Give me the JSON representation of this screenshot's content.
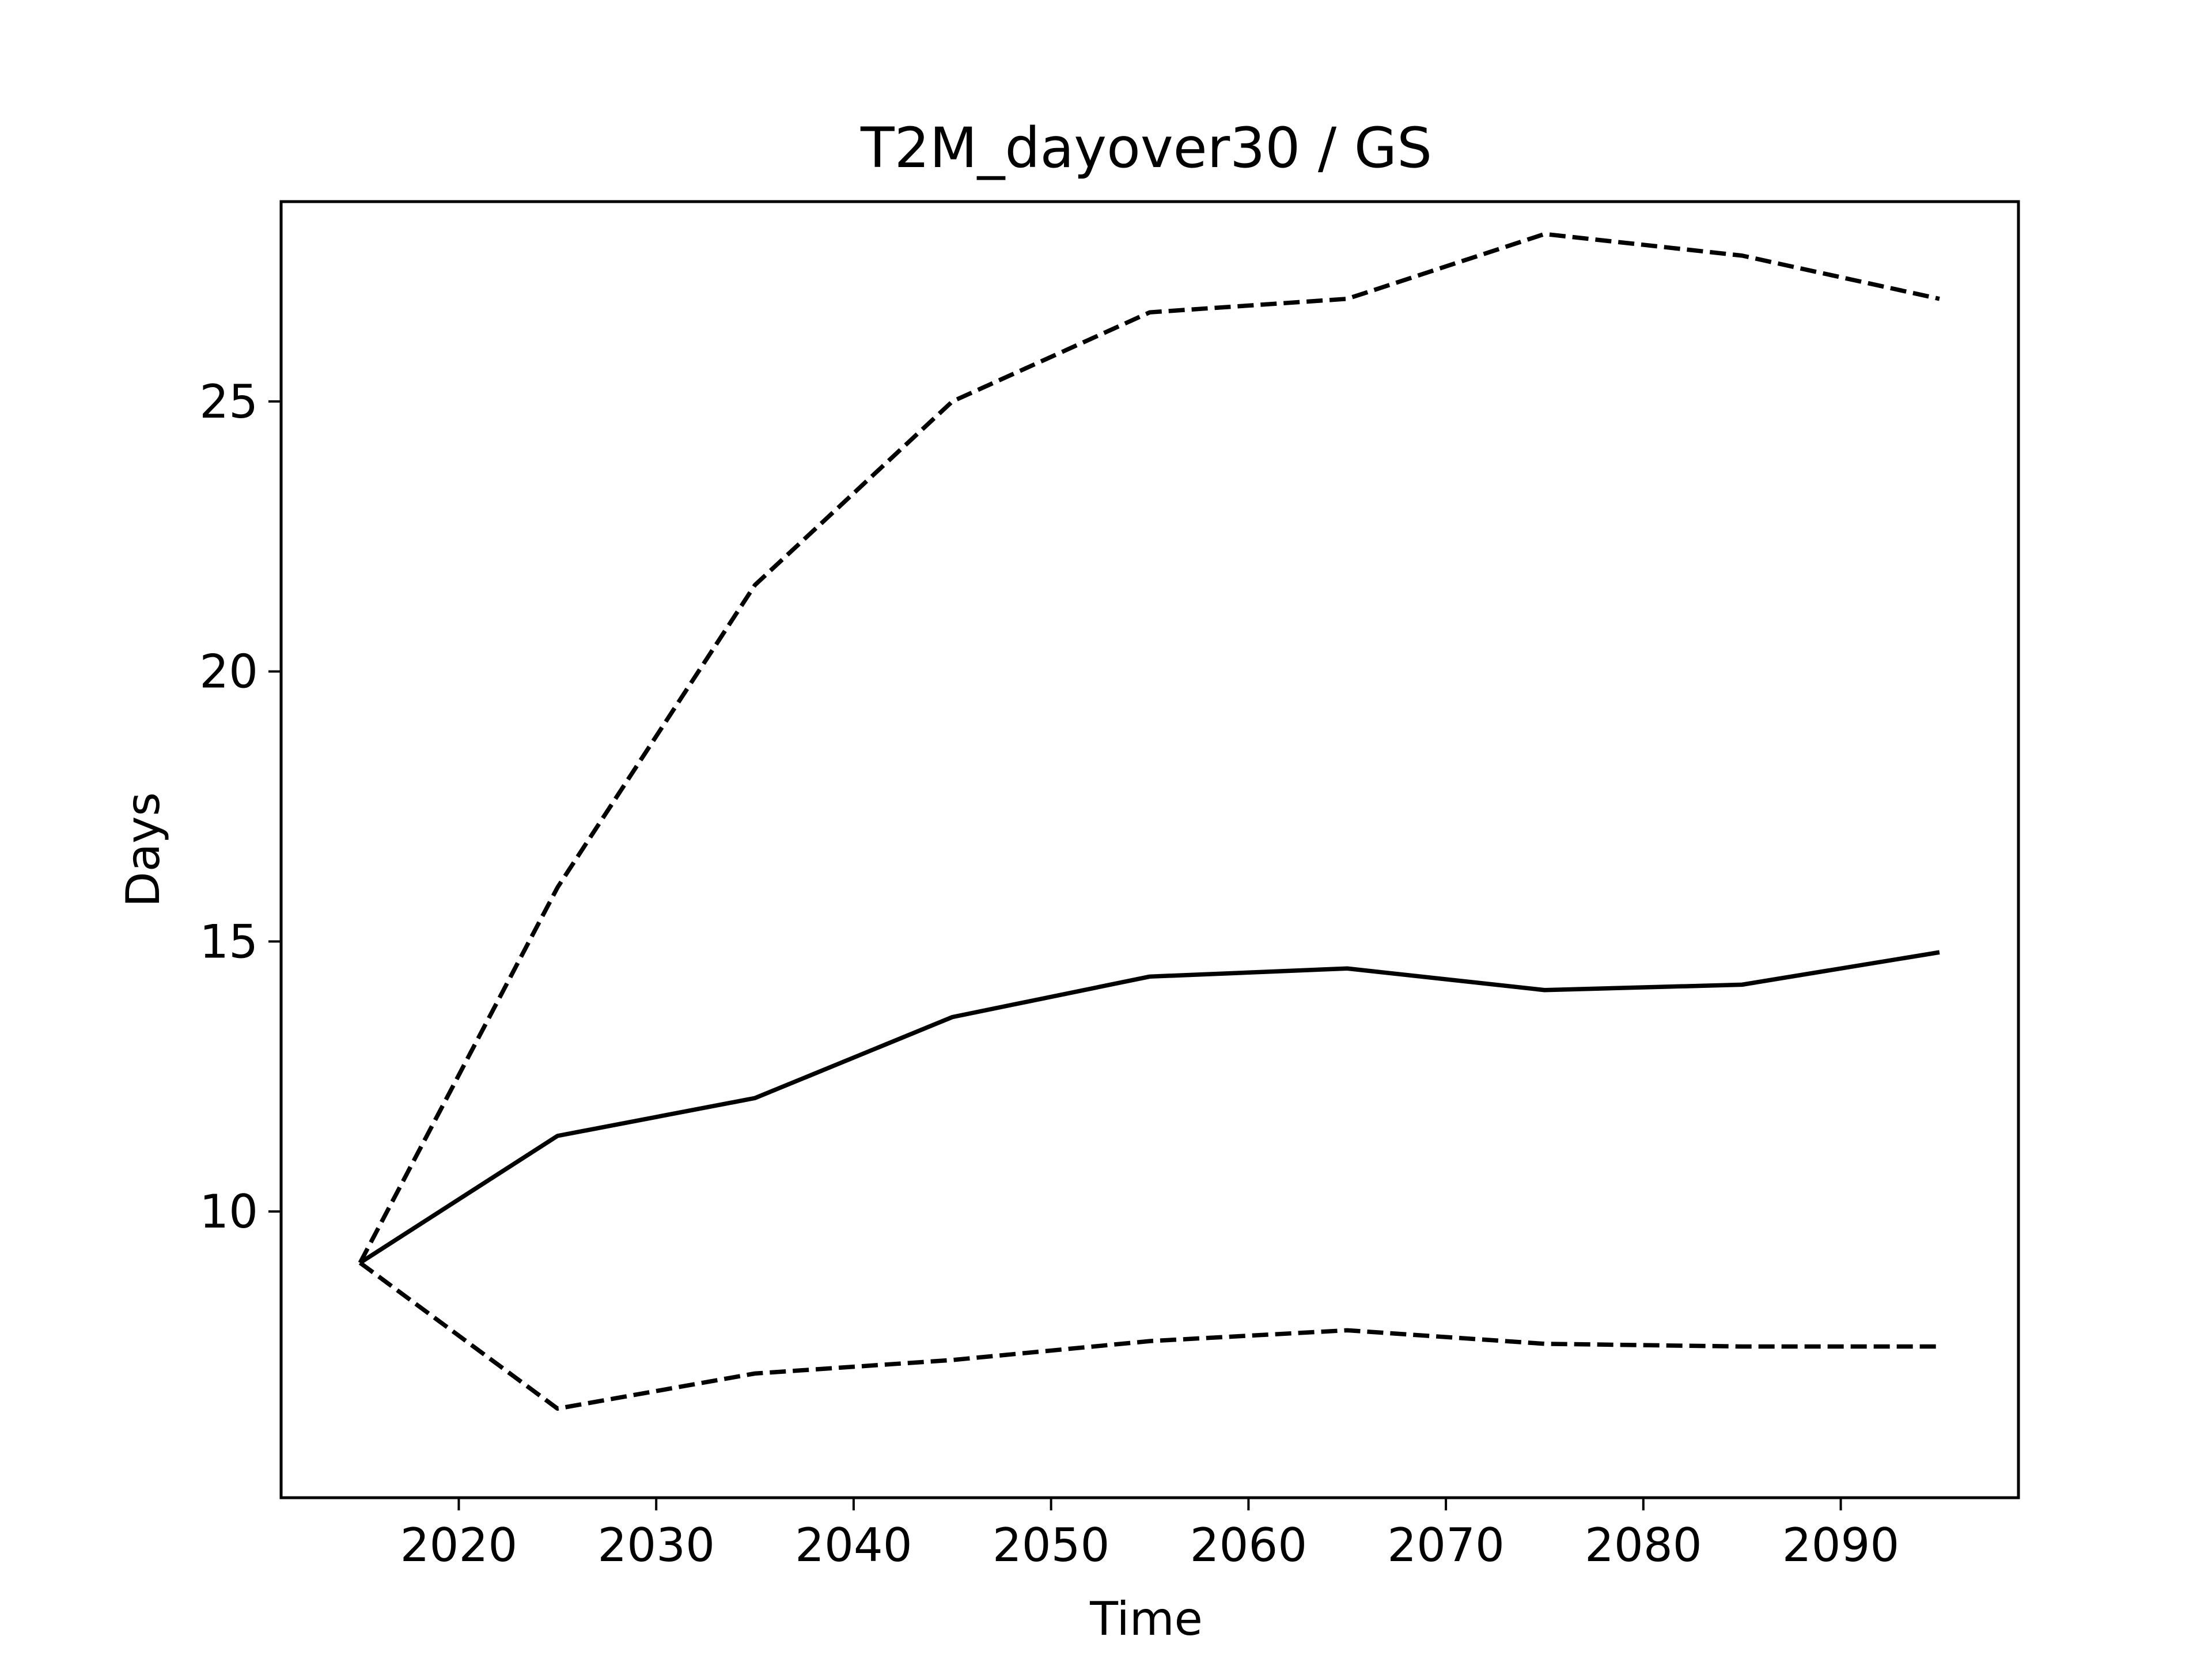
{
  "chart_data": {
    "type": "line",
    "title": "T2M_dayover30 / GS",
    "xlabel": "Time",
    "ylabel": "Days",
    "xlim": [
      2011,
      2099
    ],
    "ylim": [
      4.7,
      28.7
    ],
    "xticks": [
      2020,
      2030,
      2040,
      2050,
      2060,
      2070,
      2080,
      2090
    ],
    "yticks": [
      10,
      15,
      20,
      25
    ],
    "x": [
      2015,
      2025,
      2035,
      2045,
      2055,
      2065,
      2075,
      2085,
      2095
    ],
    "grid": false,
    "legend": "none",
    "series": [
      {
        "style": "solid",
        "color": "#000000",
        "values": [
          9.05,
          11.4,
          12.1,
          13.6,
          14.35,
          14.5,
          14.1,
          14.2,
          14.8
        ]
      },
      {
        "style": "dashed",
        "color": "#000000",
        "values": [
          9.05,
          16.0,
          21.6,
          25.0,
          26.65,
          26.9,
          28.1,
          27.7,
          26.9
        ]
      },
      {
        "style": "dashed",
        "color": "#000000",
        "values": [
          9.05,
          6.35,
          7.0,
          7.25,
          7.6,
          7.8,
          7.55,
          7.5,
          7.5
        ]
      }
    ]
  }
}
